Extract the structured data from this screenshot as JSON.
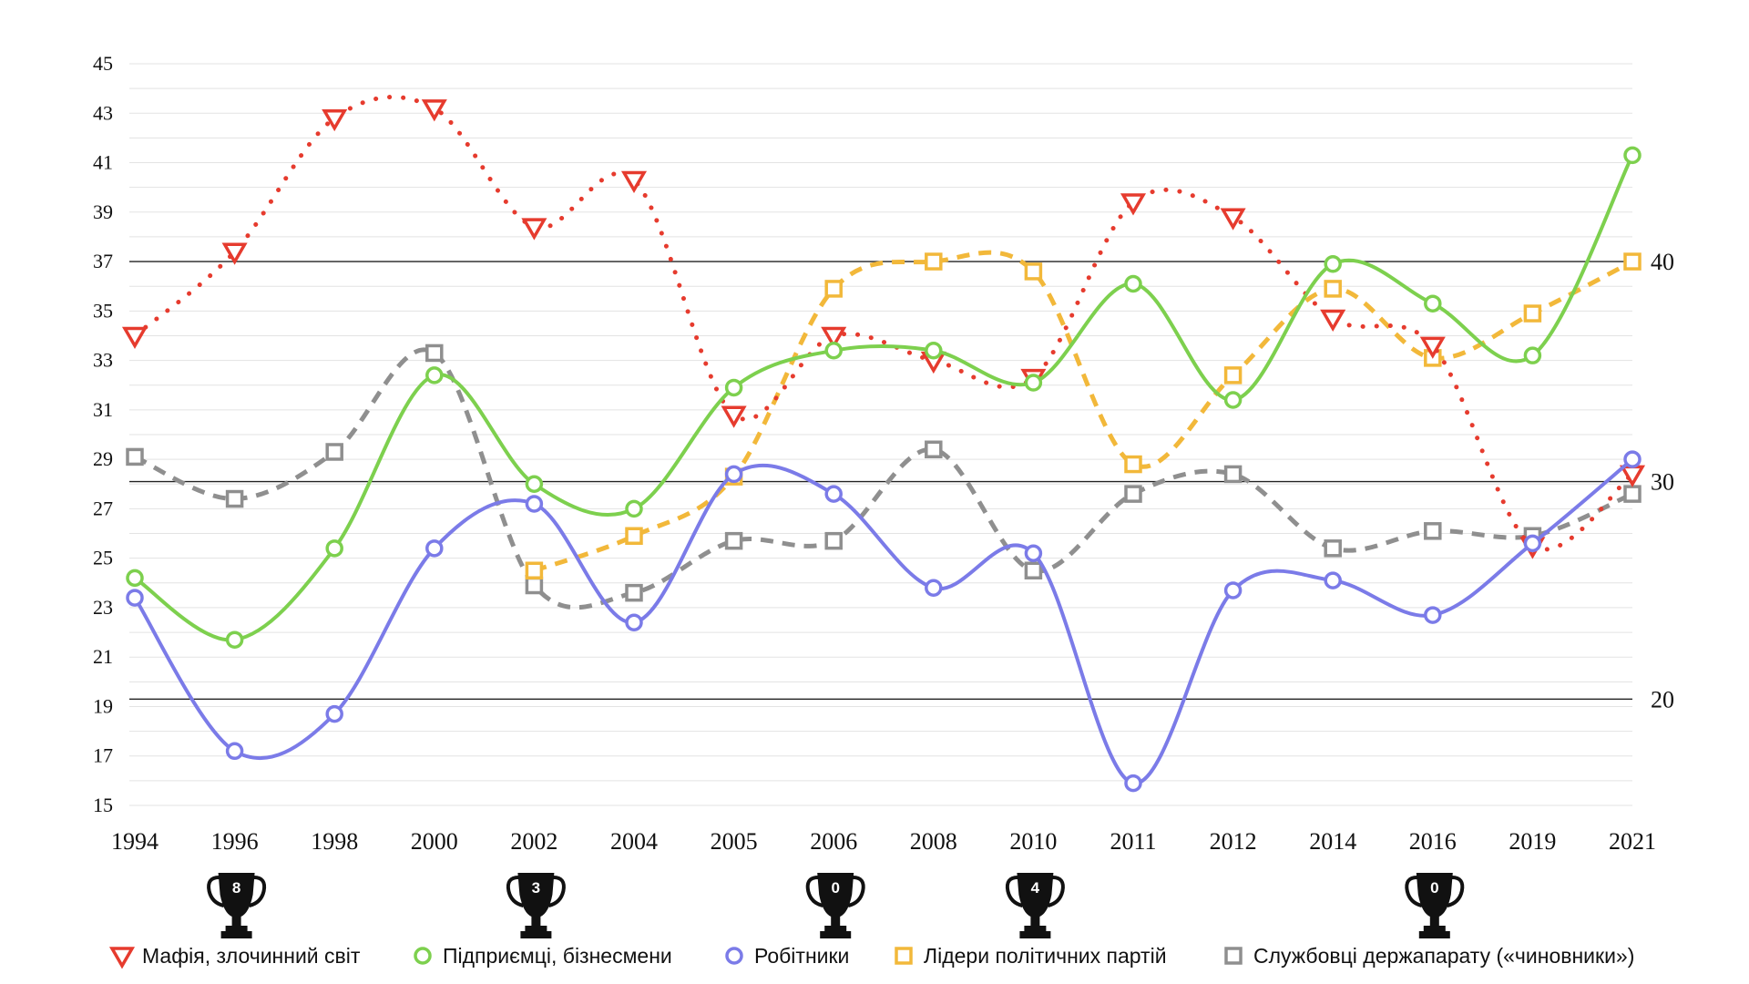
{
  "chart_data": {
    "type": "line",
    "categories": [
      "1994",
      "1996",
      "1998",
      "2000",
      "2002",
      "2004",
      "2005",
      "2006",
      "2008",
      "2010",
      "2011",
      "2012",
      "2014",
      "2016",
      "2019",
      "2021"
    ],
    "ylim": [
      15,
      45
    ],
    "y_ticks": [
      "15",
      "17",
      "19",
      "21",
      "23",
      "25",
      "27",
      "29",
      "31",
      "33",
      "35",
      "37",
      "39",
      "41",
      "43",
      "45"
    ],
    "secondary_axis": {
      "ticks": [
        {
          "label": "40",
          "at_primary": 37
        },
        {
          "label": "30",
          "at_primary": 28.1
        },
        {
          "label": "20",
          "at_primary": 19.3
        }
      ]
    },
    "grid": true,
    "legend_position": "bottom",
    "series": [
      {
        "name": "Мафія, злочинний світ",
        "color": "#e63b2e",
        "marker": "triangle-down",
        "line": "dotted",
        "values": [
          34,
          37.4,
          42.8,
          43.2,
          38.4,
          40.3,
          30.8,
          34,
          33,
          32.3,
          39.4,
          38.8,
          34.7,
          33.6,
          25.5,
          28.4
        ]
      },
      {
        "name": "Підприємці, бізнесмени",
        "color": "#7dd04e",
        "marker": "circle",
        "line": "solid",
        "values": [
          24.2,
          21.7,
          25.4,
          32.4,
          28,
          27,
          31.9,
          33.4,
          33.4,
          32.1,
          36.1,
          31.4,
          36.9,
          35.3,
          33.2,
          41.3
        ]
      },
      {
        "name": "Робітники",
        "color": "#7b7be8",
        "marker": "circle",
        "line": "solid",
        "values": [
          23.4,
          17.2,
          18.7,
          25.4,
          27.2,
          22.4,
          28.4,
          27.6,
          23.8,
          25.2,
          15.9,
          23.7,
          24.1,
          22.7,
          25.6,
          29
        ]
      },
      {
        "name": "Лідери політичних партій",
        "color": "#f2b83a",
        "marker": "square",
        "line": "dashed",
        "values": [
          null,
          null,
          null,
          null,
          24.5,
          25.9,
          28.3,
          35.9,
          37,
          36.6,
          28.8,
          32.4,
          35.9,
          33.1,
          34.9,
          37
        ]
      },
      {
        "name": "Службовці держапарату («чиновники»)",
        "color": "#8f8f8f",
        "marker": "square",
        "line": "dashed",
        "values": [
          29.1,
          27.4,
          29.3,
          33.3,
          23.9,
          23.6,
          25.7,
          25.7,
          29.4,
          24.5,
          27.6,
          28.4,
          25.4,
          26.1,
          25.9,
          27.6
        ]
      }
    ],
    "trophies": [
      {
        "category": "1996",
        "label": "8"
      },
      {
        "category": "2002",
        "label": "3"
      },
      {
        "category": "2006",
        "label": "0"
      },
      {
        "category": "2010",
        "label": "4"
      },
      {
        "category": "2016",
        "label": "0"
      }
    ]
  }
}
